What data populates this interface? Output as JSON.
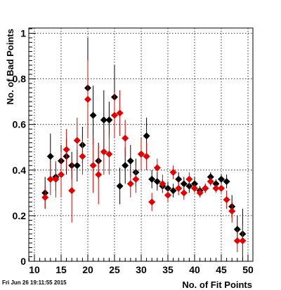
{
  "footer": {
    "timestamp": "Fri Jun 26 19:11:55 2015"
  },
  "chart_data": {
    "type": "scatter",
    "xlabel": "No. of Fit Points",
    "ylabel": "No. of Bad Points",
    "xlim": [
      8,
      52
    ],
    "ylim": [
      0,
      1.02
    ],
    "xticks": [
      10,
      15,
      20,
      25,
      30,
      35,
      40,
      45,
      50
    ],
    "yticks": [
      0,
      0.2,
      0.4,
      0.6,
      0.8,
      1
    ],
    "ytick_labels": [
      "0",
      "0.2",
      "0.4",
      "0.6",
      "0.8",
      "1"
    ],
    "grid": true,
    "marker": "diamond",
    "series": [
      {
        "color": "#000000",
        "points": [
          {
            "x": 12,
            "y": 0.3,
            "err": 0.07
          },
          {
            "x": 13,
            "y": 0.46,
            "err": 0.1
          },
          {
            "x": 14,
            "y": 0.37,
            "err": 0.06
          },
          {
            "x": 15,
            "y": 0.44,
            "err": 0.07
          },
          {
            "x": 16,
            "y": 0.46,
            "err": 0.08
          },
          {
            "x": 17,
            "y": 0.42,
            "err": 0.06
          },
          {
            "x": 18,
            "y": 0.42,
            "err": 0.07
          },
          {
            "x": 19,
            "y": 0.51,
            "err": 0.08
          },
          {
            "x": 20,
            "y": 0.76,
            "err": 0.22
          },
          {
            "x": 21,
            "y": 0.64,
            "err": 0.13
          },
          {
            "x": 22,
            "y": 0.44,
            "err": 0.08
          },
          {
            "x": 23,
            "y": 0.62,
            "err": 0.13
          },
          {
            "x": 24,
            "y": 0.62,
            "err": 0.08
          },
          {
            "x": 25,
            "y": 0.72,
            "err": 0.14
          },
          {
            "x": 26,
            "y": 0.33,
            "err": 0.08
          },
          {
            "x": 27,
            "y": 0.42,
            "err": 0.08
          },
          {
            "x": 28,
            "y": 0.44,
            "err": 0.07
          },
          {
            "x": 29,
            "y": 0.39,
            "err": 0.06
          },
          {
            "x": 30,
            "y": 0.47,
            "err": 0.07
          },
          {
            "x": 31,
            "y": 0.55,
            "err": 0.08
          },
          {
            "x": 32,
            "y": 0.36,
            "err": 0.04
          },
          {
            "x": 33,
            "y": 0.35,
            "err": 0.04
          },
          {
            "x": 34,
            "y": 0.33,
            "err": 0.03
          },
          {
            "x": 35,
            "y": 0.32,
            "err": 0.03
          },
          {
            "x": 36,
            "y": 0.31,
            "err": 0.03
          },
          {
            "x": 37,
            "y": 0.36,
            "err": 0.03
          },
          {
            "x": 38,
            "y": 0.34,
            "err": 0.03
          },
          {
            "x": 39,
            "y": 0.33,
            "err": 0.03
          },
          {
            "x": 40,
            "y": 0.34,
            "err": 0.03
          },
          {
            "x": 41,
            "y": 0.31,
            "err": 0.02
          },
          {
            "x": 42,
            "y": 0.32,
            "err": 0.02
          },
          {
            "x": 43,
            "y": 0.37,
            "err": 0.02
          },
          {
            "x": 44,
            "y": 0.34,
            "err": 0.02
          },
          {
            "x": 45,
            "y": 0.36,
            "err": 0.02
          },
          {
            "x": 46,
            "y": 0.35,
            "err": 0.03
          },
          {
            "x": 47,
            "y": 0.24,
            "err": 0.05
          },
          {
            "x": 48,
            "y": 0.14,
            "err": 0.06
          },
          {
            "x": 49,
            "y": 0.12,
            "err": 0.11
          }
        ]
      },
      {
        "color": "#e00000",
        "points": [
          {
            "x": 12,
            "y": 0.28,
            "err": 0.05
          },
          {
            "x": 13,
            "y": 0.36,
            "err": 0.07
          },
          {
            "x": 14,
            "y": 0.36,
            "err": 0.08
          },
          {
            "x": 15,
            "y": 0.38,
            "err": 0.1
          },
          {
            "x": 16,
            "y": 0.49,
            "err": 0.09
          },
          {
            "x": 17,
            "y": 0.31,
            "err": 0.14
          },
          {
            "x": 18,
            "y": 0.53,
            "err": 0.1
          },
          {
            "x": 19,
            "y": 0.46,
            "err": 0.08
          },
          {
            "x": 20,
            "y": 0.71,
            "err": 0.17
          },
          {
            "x": 21,
            "y": 0.42,
            "err": 0.12
          },
          {
            "x": 22,
            "y": 0.38,
            "err": 0.13
          },
          {
            "x": 23,
            "y": 0.48,
            "err": 0.1
          },
          {
            "x": 24,
            "y": 0.47,
            "err": 0.09
          },
          {
            "x": 25,
            "y": 0.64,
            "err": 0.1
          },
          {
            "x": 26,
            "y": 0.65,
            "err": 0.1
          },
          {
            "x": 27,
            "y": 0.54,
            "err": 0.08
          },
          {
            "x": 28,
            "y": 0.34,
            "err": 0.06
          },
          {
            "x": 29,
            "y": 0.36,
            "err": 0.06
          },
          {
            "x": 30,
            "y": 0.47,
            "err": 0.07
          },
          {
            "x": 31,
            "y": 0.46,
            "err": 0.06
          },
          {
            "x": 32,
            "y": 0.26,
            "err": 0.04
          },
          {
            "x": 33,
            "y": 0.41,
            "err": 0.04
          },
          {
            "x": 34,
            "y": 0.34,
            "err": 0.04
          },
          {
            "x": 35,
            "y": 0.29,
            "err": 0.03
          },
          {
            "x": 36,
            "y": 0.39,
            "err": 0.03
          },
          {
            "x": 37,
            "y": 0.32,
            "err": 0.03
          },
          {
            "x": 38,
            "y": 0.3,
            "err": 0.03
          },
          {
            "x": 39,
            "y": 0.36,
            "err": 0.03
          },
          {
            "x": 40,
            "y": 0.32,
            "err": 0.02
          },
          {
            "x": 41,
            "y": 0.3,
            "err": 0.02
          },
          {
            "x": 42,
            "y": 0.32,
            "err": 0.02
          },
          {
            "x": 43,
            "y": 0.35,
            "err": 0.02
          },
          {
            "x": 44,
            "y": 0.32,
            "err": 0.02
          },
          {
            "x": 45,
            "y": 0.32,
            "err": 0.02
          },
          {
            "x": 46,
            "y": 0.27,
            "err": 0.04
          },
          {
            "x": 47,
            "y": 0.22,
            "err": 0.05
          },
          {
            "x": 48,
            "y": 0.09,
            "err": 0.05
          },
          {
            "x": 49,
            "y": 0.09,
            "err": 0.07
          }
        ]
      }
    ]
  }
}
